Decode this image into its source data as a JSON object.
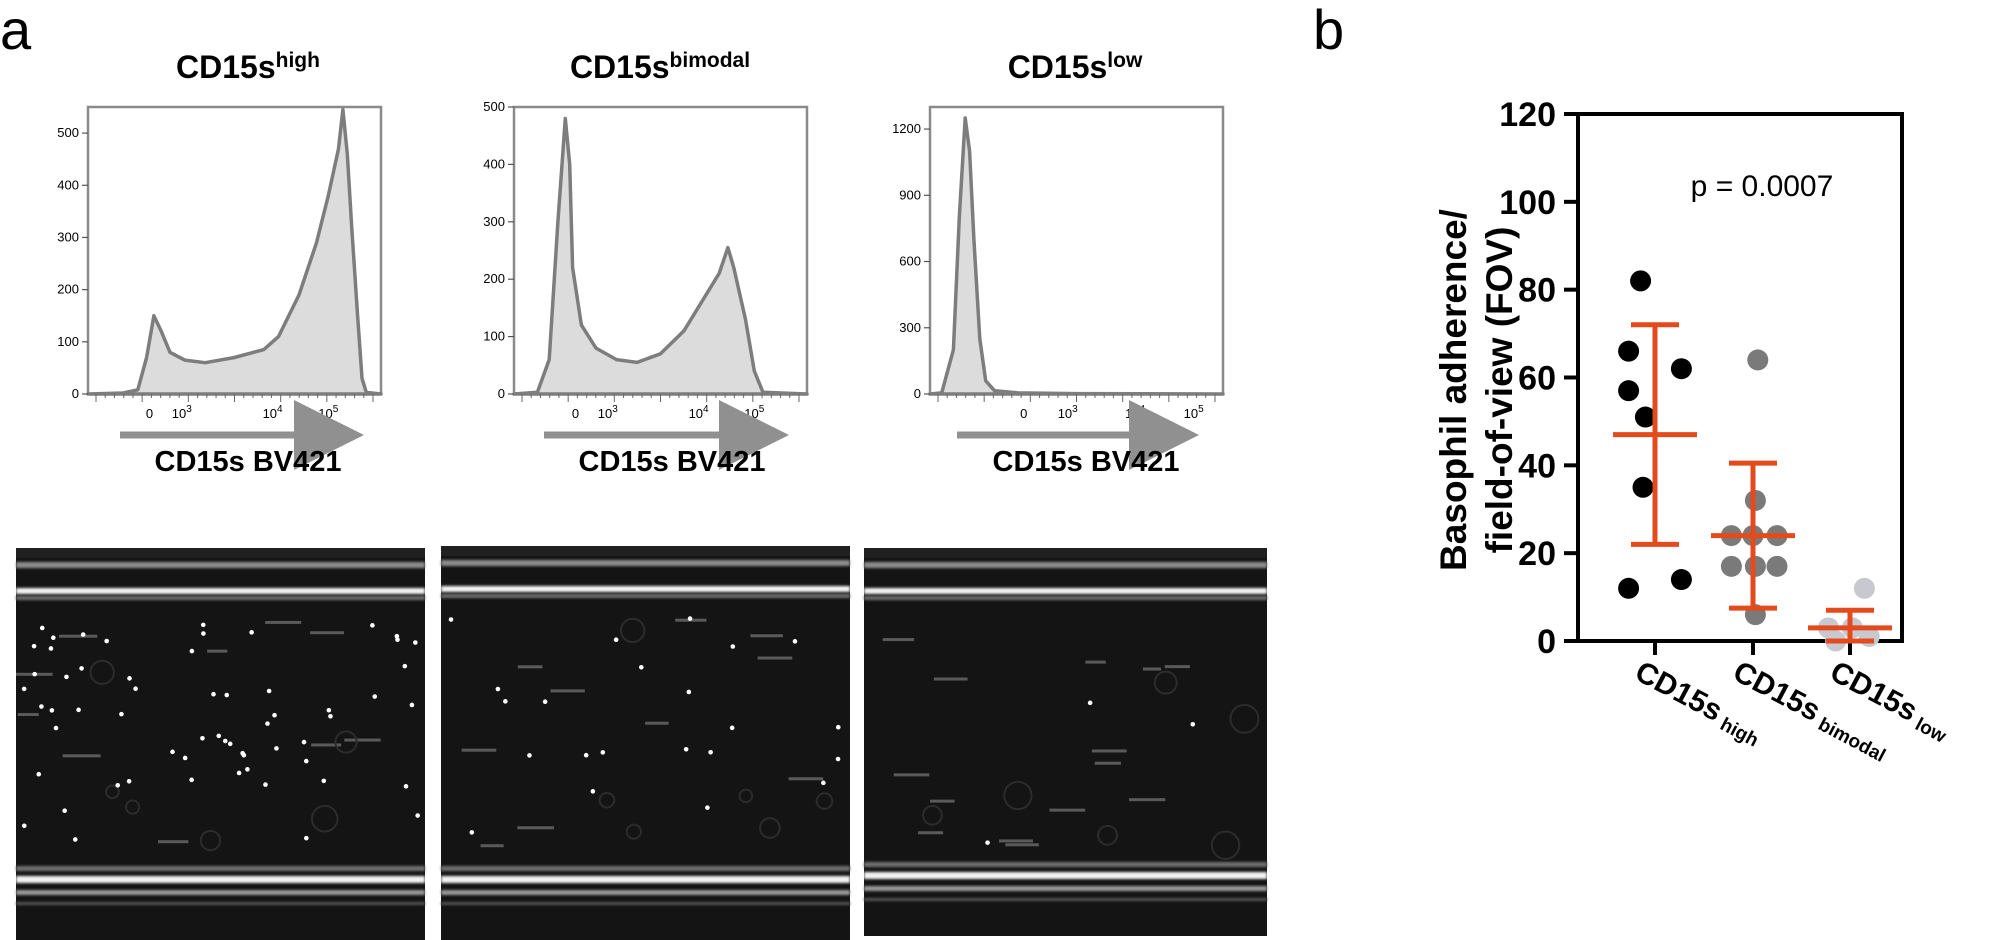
{
  "panel_a": {
    "letter": "a",
    "histograms": [
      {
        "title": "CD15s",
        "title_sup": "high",
        "xlabel": "CD15s BV421",
        "y_ticks": [
          "0",
          "100",
          "200",
          "300",
          "400",
          "500"
        ],
        "y_max": 550,
        "x_ticks": [
          {
            "base": "0",
            "exp": ""
          },
          {
            "base": "10",
            "exp": "3"
          },
          {
            "base": "10",
            "exp": "4"
          },
          {
            "base": "10",
            "exp": "5"
          }
        ],
        "profile": [
          [
            0,
            0
          ],
          [
            0.12,
            2
          ],
          [
            0.17,
            8
          ],
          [
            0.2,
            70
          ],
          [
            0.225,
            150
          ],
          [
            0.25,
            120
          ],
          [
            0.28,
            80
          ],
          [
            0.33,
            65
          ],
          [
            0.4,
            60
          ],
          [
            0.5,
            70
          ],
          [
            0.6,
            85
          ],
          [
            0.65,
            110
          ],
          [
            0.72,
            190
          ],
          [
            0.78,
            290
          ],
          [
            0.82,
            380
          ],
          [
            0.855,
            470
          ],
          [
            0.87,
            545
          ],
          [
            0.885,
            460
          ],
          [
            0.9,
            320
          ],
          [
            0.92,
            150
          ],
          [
            0.935,
            30
          ],
          [
            0.95,
            3
          ],
          [
            1,
            0
          ]
        ]
      },
      {
        "title": "CD15s",
        "title_sup": "bimodal",
        "xlabel": "CD15s BV421",
        "y_ticks": [
          "0",
          "100",
          "200",
          "300",
          "400",
          "500"
        ],
        "y_max": 500,
        "x_ticks": [
          {
            "base": "0",
            "exp": ""
          },
          {
            "base": "10",
            "exp": "3"
          },
          {
            "base": "10",
            "exp": "4"
          },
          {
            "base": "10",
            "exp": "5"
          }
        ],
        "profile": [
          [
            0,
            0
          ],
          [
            0.08,
            3
          ],
          [
            0.12,
            60
          ],
          [
            0.15,
            300
          ],
          [
            0.175,
            480
          ],
          [
            0.19,
            400
          ],
          [
            0.2,
            220
          ],
          [
            0.23,
            120
          ],
          [
            0.28,
            80
          ],
          [
            0.35,
            60
          ],
          [
            0.42,
            55
          ],
          [
            0.5,
            70
          ],
          [
            0.58,
            110
          ],
          [
            0.64,
            160
          ],
          [
            0.7,
            210
          ],
          [
            0.73,
            255
          ],
          [
            0.75,
            220
          ],
          [
            0.79,
            130
          ],
          [
            0.82,
            40
          ],
          [
            0.85,
            3
          ],
          [
            1,
            0
          ]
        ]
      },
      {
        "title": "CD15s",
        "title_sup": "low",
        "xlabel": "CD15s BV421",
        "y_ticks": [
          "0",
          "300",
          "600",
          "900",
          "1200"
        ],
        "y_max": 1300,
        "x_ticks": [
          {
            "base": "0",
            "exp": ""
          },
          {
            "base": "10",
            "exp": "3"
          },
          {
            "base": "10",
            "exp": "4"
          },
          {
            "base": "10",
            "exp": "5"
          }
        ],
        "profile": [
          [
            0,
            0
          ],
          [
            0.04,
            5
          ],
          [
            0.08,
            200
          ],
          [
            0.1,
            800
          ],
          [
            0.12,
            1250
          ],
          [
            0.135,
            1100
          ],
          [
            0.15,
            700
          ],
          [
            0.17,
            250
          ],
          [
            0.19,
            60
          ],
          [
            0.22,
            15
          ],
          [
            0.3,
            5
          ],
          [
            0.5,
            2
          ],
          [
            1,
            0
          ]
        ]
      }
    ],
    "micrographs": [
      {
        "name": "high"
      },
      {
        "name": "bimodal"
      },
      {
        "name": "low"
      }
    ]
  },
  "panel_b": {
    "letter": "b",
    "chart_data": {
      "type": "scatter",
      "ylabel_line1": "Basophil adherence/",
      "ylabel_line2": "field-of-view (FOV)",
      "ylim": [
        0,
        120
      ],
      "y_ticks": [
        "0",
        "20",
        "40",
        "60",
        "80",
        "100",
        "120"
      ],
      "annotation": "p = 0.0007",
      "categories": [
        {
          "label": "CD15s",
          "sub": "high"
        },
        {
          "label": "CD15s",
          "sub": "bimodal"
        },
        {
          "label": "CD15s",
          "sub": "low"
        }
      ],
      "series": [
        {
          "color": "#000000",
          "points": [
            [
              -0.3,
              82
            ],
            [
              -0.55,
              66
            ],
            [
              -0.55,
              57
            ],
            [
              -0.2,
              51
            ],
            [
              0.55,
              62
            ],
            [
              -0.25,
              35
            ],
            [
              -0.55,
              12
            ],
            [
              0.55,
              14
            ]
          ],
          "mean": 47,
          "sd": 25
        },
        {
          "color": "#7a7a7a",
          "points": [
            [
              0.1,
              64
            ],
            [
              0.05,
              32
            ],
            [
              -0.45,
              24
            ],
            [
              0.0,
              24
            ],
            [
              0.5,
              24
            ],
            [
              -0.45,
              17
            ],
            [
              0.05,
              17
            ],
            [
              0.5,
              17
            ],
            [
              0.05,
              6
            ]
          ],
          "mean": 24,
          "sd": 16.5
        },
        {
          "color": "#c8c8d0",
          "points": [
            [
              0.3,
              12
            ],
            [
              -0.45,
              3
            ],
            [
              0.05,
              3
            ],
            [
              0.4,
              1
            ],
            [
              -0.3,
              0
            ]
          ],
          "mean": 3,
          "sd": 4
        }
      ],
      "error_color": "#e34a1c"
    }
  }
}
